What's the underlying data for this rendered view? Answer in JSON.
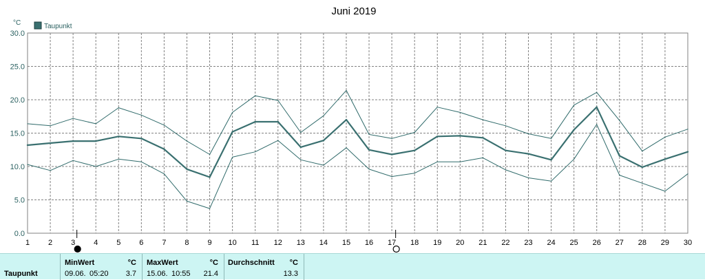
{
  "chart_data": {
    "type": "line",
    "title": "Juni 2019",
    "yunit": "°C",
    "ylim": [
      0,
      30
    ],
    "yticks": [
      "0.0",
      "5.0",
      "10.0",
      "15.0",
      "20.0",
      "25.0",
      "30.0"
    ],
    "x": [
      1,
      2,
      3,
      4,
      5,
      6,
      7,
      8,
      9,
      10,
      11,
      12,
      13,
      14,
      15,
      16,
      17,
      18,
      19,
      20,
      21,
      22,
      23,
      24,
      25,
      26,
      27,
      28,
      29,
      30
    ],
    "legend": "Taupunkt",
    "grid": true,
    "series": [
      {
        "name": "Taupunkt",
        "role": "mean",
        "values": [
          13.2,
          13.5,
          13.8,
          13.8,
          14.5,
          14.2,
          12.6,
          9.6,
          8.4,
          15.2,
          16.7,
          16.7,
          12.9,
          13.9,
          17.0,
          12.5,
          11.8,
          12.4,
          14.5,
          14.6,
          14.3,
          12.4,
          11.9,
          11.0,
          15.5,
          18.9,
          11.6,
          9.9,
          11.1,
          12.2
        ]
      },
      {
        "role": "max",
        "values": [
          16.4,
          16.1,
          17.2,
          16.4,
          18.8,
          17.7,
          16.2,
          13.8,
          11.8,
          18.1,
          20.6,
          19.9,
          15.1,
          17.6,
          21.4,
          14.8,
          14.2,
          15.1,
          18.9,
          18.1,
          17.0,
          16.1,
          14.9,
          14.2,
          19.2,
          21.1,
          16.9,
          12.3,
          14.4,
          15.6
        ]
      },
      {
        "role": "min",
        "values": [
          10.3,
          9.4,
          10.9,
          10.0,
          11.1,
          10.7,
          8.9,
          4.8,
          3.7,
          11.4,
          12.2,
          13.9,
          11.0,
          10.2,
          12.8,
          9.6,
          8.5,
          9.0,
          10.7,
          10.7,
          11.3,
          9.5,
          8.3,
          7.8,
          11.1,
          16.3,
          8.7,
          7.5,
          6.3,
          8.9
        ]
      }
    ],
    "moon_phases": [
      {
        "day": 3.5,
        "phase": "new-moon"
      },
      {
        "day": 17.5,
        "phase": "full-moon"
      }
    ],
    "colors": {
      "line": "#3a7070",
      "thin": "#2f6a6a",
      "grid": "#808080",
      "footer_bg": "#cdf5f3",
      "legend_box": "#3a7070"
    }
  },
  "footer": {
    "row_label": "Taupunkt",
    "min_header": "MinWert",
    "min_unit": "°C",
    "min_date": "09.06.",
    "min_time": "05:20",
    "min_value": "3.7",
    "max_header": "MaxWert",
    "max_unit": "°C",
    "max_date": "15.06.",
    "max_time": "10:55",
    "max_value": "21.4",
    "avg_header": "Durchschnitt",
    "avg_unit": "°C",
    "avg_value": "13.3"
  }
}
